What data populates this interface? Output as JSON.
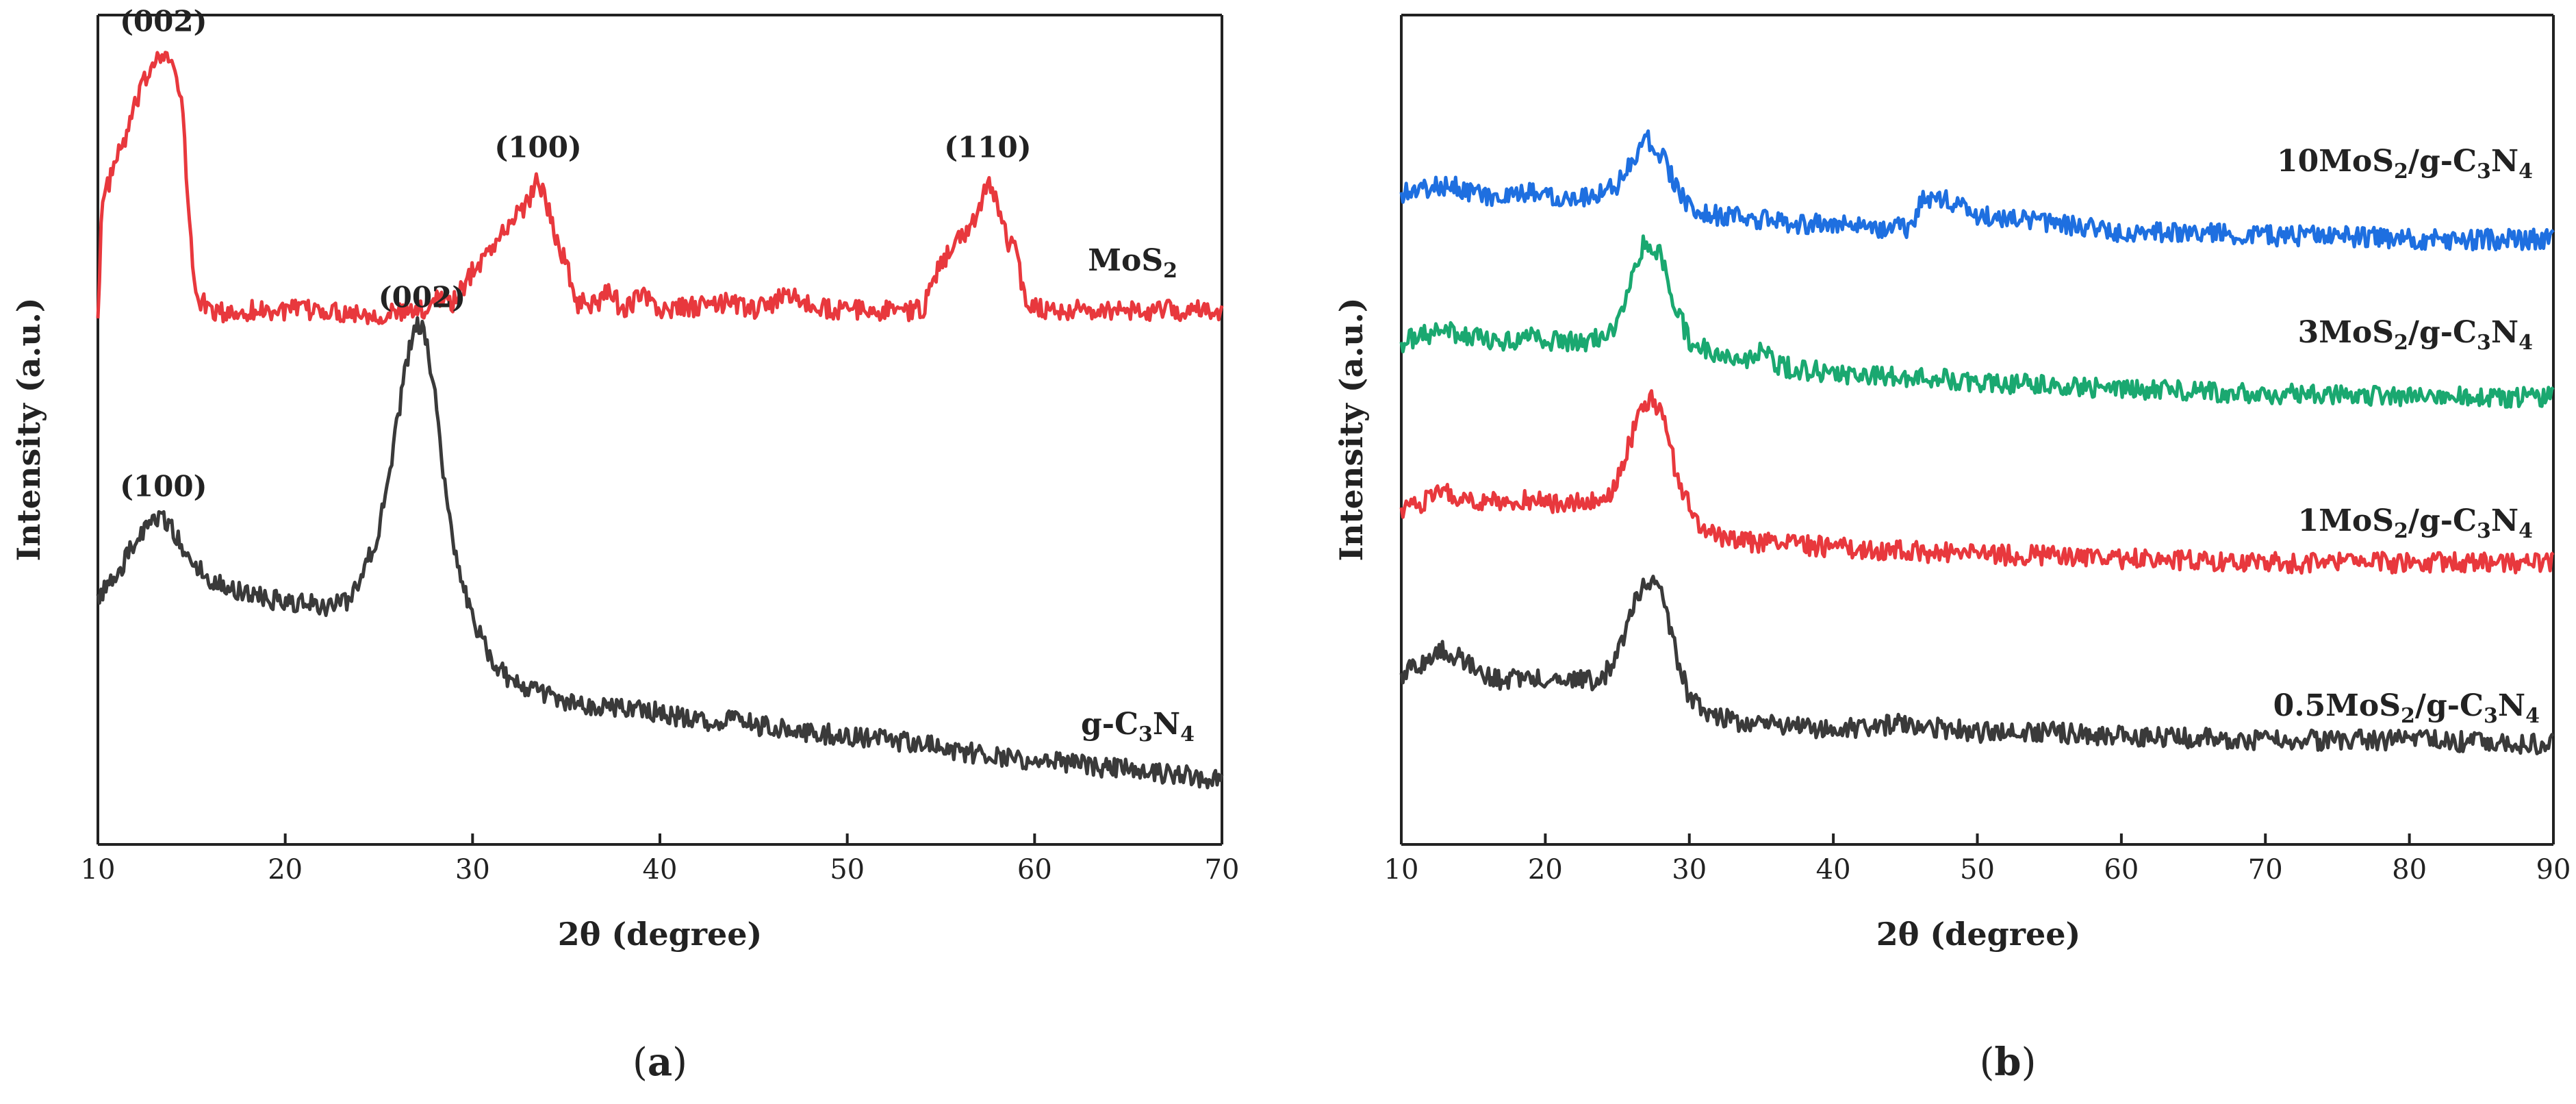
{
  "chart_data": [
    {
      "type": "line",
      "panel_caption": "(a)",
      "caption_open": "(",
      "caption_letter": "a",
      "caption_close": ")",
      "xlabel": "2θ (degree)",
      "ylabel": "Intensity (a.u.)",
      "xlim": [
        10,
        70
      ],
      "ylim": [
        0,
        100
      ],
      "xticks": [
        "10",
        "20",
        "30",
        "40",
        "50",
        "60",
        "70"
      ],
      "yticks": [],
      "grid": false,
      "series": [
        {
          "name": "MoS2",
          "label_main": "MoS",
          "label_sub": "2",
          "color": "#e8383d",
          "points": [
            [
              10,
              65
            ],
            [
              10.2,
              79
            ],
            [
              10.8,
              84
            ],
            [
              11.5,
              88
            ],
            [
              12,
              92
            ],
            [
              12.5,
              95
            ],
            [
              13,
              98
            ],
            [
              13.5,
              99
            ],
            [
              14,
              97
            ],
            [
              14.5,
              92
            ],
            [
              14.8,
              80
            ],
            [
              15.2,
              68
            ],
            [
              16,
              66
            ],
            [
              17,
              65.5
            ],
            [
              18,
              66
            ],
            [
              20,
              66
            ],
            [
              22,
              66
            ],
            [
              25,
              65.5
            ],
            [
              27.5,
              66
            ],
            [
              28,
              68
            ],
            [
              29,
              67
            ],
            [
              30,
              71
            ],
            [
              31,
              74
            ],
            [
              32,
              77
            ],
            [
              33,
              80
            ],
            [
              33.5,
              83
            ],
            [
              34,
              79
            ],
            [
              34.5,
              75
            ],
            [
              35,
              72
            ],
            [
              35.5,
              67
            ],
            [
              37,
              67
            ],
            [
              37.2,
              69
            ],
            [
              38,
              66
            ],
            [
              39,
              68
            ],
            [
              40,
              66
            ],
            [
              42,
              66.5
            ],
            [
              44,
              67
            ],
            [
              45,
              66
            ],
            [
              47,
              68
            ],
            [
              48,
              66.5
            ],
            [
              50,
              66
            ],
            [
              52,
              66
            ],
            [
              54,
              66
            ],
            [
              55,
              72
            ],
            [
              56,
              75
            ],
            [
              57,
              78
            ],
            [
              57.5,
              83
            ],
            [
              58,
              80
            ],
            [
              58.5,
              75
            ],
            [
              59,
              74
            ],
            [
              59.5,
              67
            ],
            [
              61,
              66
            ],
            [
              65,
              66
            ],
            [
              70,
              66
            ]
          ],
          "peak_labels": [
            {
              "label": "(002)",
              "x": 13.5,
              "y": 99
            },
            {
              "label": "(100)",
              "x": 33.5,
              "y": 83
            },
            {
              "label": "(110)",
              "x": 57.5,
              "y": 83
            }
          ]
        },
        {
          "name": "g-C3N4",
          "label_main": "g-C",
          "label_sub1": "3",
          "label_mid": "N",
          "label_sub2": "4",
          "color": "#3a3a3a",
          "points": [
            [
              10,
              30
            ],
            [
              11,
              32
            ],
            [
              12,
              37
            ],
            [
              13,
              39
            ],
            [
              13.5,
              40
            ],
            [
              14,
              38
            ],
            [
              15,
              34
            ],
            [
              16,
              32
            ],
            [
              17,
              31
            ],
            [
              18,
              30
            ],
            [
              20,
              29
            ],
            [
              22,
              28.5
            ],
            [
              23.5,
              29
            ],
            [
              24,
              32
            ],
            [
              25,
              38
            ],
            [
              26,
              52
            ],
            [
              26.5,
              60
            ],
            [
              27,
              64
            ],
            [
              27.5,
              63
            ],
            [
              28,
              55
            ],
            [
              28.5,
              44
            ],
            [
              29,
              36
            ],
            [
              30,
              27
            ],
            [
              31,
              22
            ],
            [
              32,
              19
            ],
            [
              34,
              17
            ],
            [
              36,
              16
            ],
            [
              38,
              15.5
            ],
            [
              40,
              15
            ],
            [
              42,
              14
            ],
            [
              44,
              14
            ],
            [
              46,
              13
            ],
            [
              48,
              12.5
            ],
            [
              50,
              12
            ],
            [
              52,
              11.5
            ],
            [
              54,
              11
            ],
            [
              56,
              10
            ],
            [
              58,
              9.5
            ],
            [
              60,
              9
            ],
            [
              62,
              8.5
            ],
            [
              64,
              8
            ],
            [
              66,
              7.5
            ],
            [
              68,
              7
            ],
            [
              70,
              6.5
            ]
          ],
          "peak_labels": [
            {
              "label": "(100)",
              "x": 13.5,
              "y": 40
            },
            {
              "label": "(002)",
              "x": 27.3,
              "y": 64
            }
          ]
        }
      ]
    },
    {
      "type": "line",
      "panel_caption": "(b)",
      "caption_open": "(",
      "caption_letter": "b",
      "caption_close": ")",
      "xlabel": "2θ (degree)",
      "ylabel": "Intensity (a.u.)",
      "xlim": [
        10,
        90
      ],
      "ylim": [
        0,
        100
      ],
      "xticks": [
        "10",
        "20",
        "30",
        "40",
        "50",
        "60",
        "70",
        "80",
        "90"
      ],
      "yticks": [],
      "grid": false,
      "series": [
        {
          "name": "10MoS2/g-C3N4",
          "label_pre": "10MoS",
          "label_sub1": "2",
          "label_mid": "/g-C",
          "label_sub2": "3",
          "label_mid2": "N",
          "label_sub3": "4",
          "color": "#1e6fe0",
          "points": [
            [
              10,
              81
            ],
            [
              12,
              81.5
            ],
            [
              13.5,
              82
            ],
            [
              15,
              81
            ],
            [
              17,
              80
            ],
            [
              19,
              81
            ],
            [
              21,
              80.5
            ],
            [
              23,
              80.5
            ],
            [
              25,
              82
            ],
            [
              26,
              85
            ],
            [
              27,
              88
            ],
            [
              28,
              86
            ],
            [
              29,
              82
            ],
            [
              30,
              79
            ],
            [
              32,
              78
            ],
            [
              35,
              77.5
            ],
            [
              38,
              77
            ],
            [
              40,
              77
            ],
            [
              43,
              76.5
            ],
            [
              45.5,
              76.5
            ],
            [
              46,
              80
            ],
            [
              48,
              80
            ],
            [
              50,
              78
            ],
            [
              55,
              77
            ],
            [
              60,
              76
            ],
            [
              65,
              76
            ],
            [
              70,
              75.5
            ],
            [
              75,
              75.5
            ],
            [
              80,
              75
            ],
            [
              85,
              75
            ],
            [
              90,
              75
            ]
          ]
        },
        {
          "name": "3MoS2/g-C3N4",
          "label_pre": "3MoS",
          "label_sub1": "2",
          "label_mid": "/g-C",
          "label_sub2": "3",
          "label_mid2": "N",
          "label_sub3": "4",
          "color": "#1aa870",
          "points": [
            [
              10,
              62
            ],
            [
              12,
              63
            ],
            [
              13,
              63.5
            ],
            [
              15,
              62.5
            ],
            [
              17,
              62
            ],
            [
              19,
              62.5
            ],
            [
              21,
              62
            ],
            [
              23,
              62
            ],
            [
              24.5,
              63
            ],
            [
              25.5,
              67
            ],
            [
              26.5,
              73
            ],
            [
              27,
              75
            ],
            [
              28,
              73
            ],
            [
              29,
              67
            ],
            [
              30,
              62
            ],
            [
              32,
              60.5
            ],
            [
              34,
              60
            ],
            [
              35.5,
              61
            ],
            [
              36,
              59
            ],
            [
              38,
              58.5
            ],
            [
              40,
              58
            ],
            [
              45,
              57.5
            ],
            [
              50,
              57
            ],
            [
              55,
              56.5
            ],
            [
              60,
              56
            ],
            [
              70,
              55.5
            ],
            [
              80,
              55
            ],
            [
              90,
              55
            ]
          ]
        },
        {
          "name": "1MoS2/g-C3N4",
          "label_pre": "1MoS",
          "label_sub1": "2",
          "label_mid": "/g-C",
          "label_sub2": "3",
          "label_mid2": "N",
          "label_sub3": "4",
          "color": "#e8383d",
          "points": [
            [
              10,
              41
            ],
            [
              12,
              42
            ],
            [
              13,
              43
            ],
            [
              15,
              42
            ],
            [
              17,
              41.5
            ],
            [
              19,
              42
            ],
            [
              21,
              41.5
            ],
            [
              23,
              41.5
            ],
            [
              24.5,
              43
            ],
            [
              25.5,
              47
            ],
            [
              26.5,
              53
            ],
            [
              27.5,
              55
            ],
            [
              28.5,
              51
            ],
            [
              29,
              46
            ],
            [
              30,
              41
            ],
            [
              31,
              38
            ],
            [
              33,
              37
            ],
            [
              35,
              36.5
            ],
            [
              40,
              36
            ],
            [
              45,
              35.5
            ],
            [
              50,
              35
            ],
            [
              55,
              35
            ],
            [
              60,
              34.5
            ],
            [
              70,
              34
            ],
            [
              80,
              34
            ],
            [
              90,
              34
            ]
          ]
        },
        {
          "name": "0.5MoS2/g-C3N4",
          "label_pre": "0.5MoS",
          "label_sub1": "2",
          "label_mid": "/g-C",
          "label_sub2": "3",
          "label_mid2": "N",
          "label_sub3": "4",
          "color": "#3a3a3a",
          "points": [
            [
              10,
              20
            ],
            [
              11,
              20.5
            ],
            [
              12,
              22
            ],
            [
              13,
              23
            ],
            [
              14,
              22
            ],
            [
              15,
              20.5
            ],
            [
              16,
              19.5
            ],
            [
              17,
              19
            ],
            [
              19,
              19.5
            ],
            [
              21,
              19
            ],
            [
              23,
              19
            ],
            [
              24,
              19.5
            ],
            [
              25,
              22
            ],
            [
              26,
              28
            ],
            [
              27,
              32
            ],
            [
              28,
              30
            ],
            [
              29,
              23
            ],
            [
              30,
              17
            ],
            [
              31,
              15
            ],
            [
              33,
              14
            ],
            [
              35,
              13.5
            ],
            [
              38,
              13
            ],
            [
              40,
              13
            ],
            [
              45,
              13.5
            ],
            [
              50,
              12.5
            ],
            [
              55,
              12.5
            ],
            [
              60,
              12
            ],
            [
              70,
              11.5
            ],
            [
              80,
              11.5
            ],
            [
              90,
              11
            ]
          ]
        }
      ]
    }
  ],
  "colors": {
    "axis": "#222222",
    "red": "#e8383d",
    "dark": "#3a3a3a",
    "blue": "#1e6fe0",
    "green": "#1aa870"
  }
}
